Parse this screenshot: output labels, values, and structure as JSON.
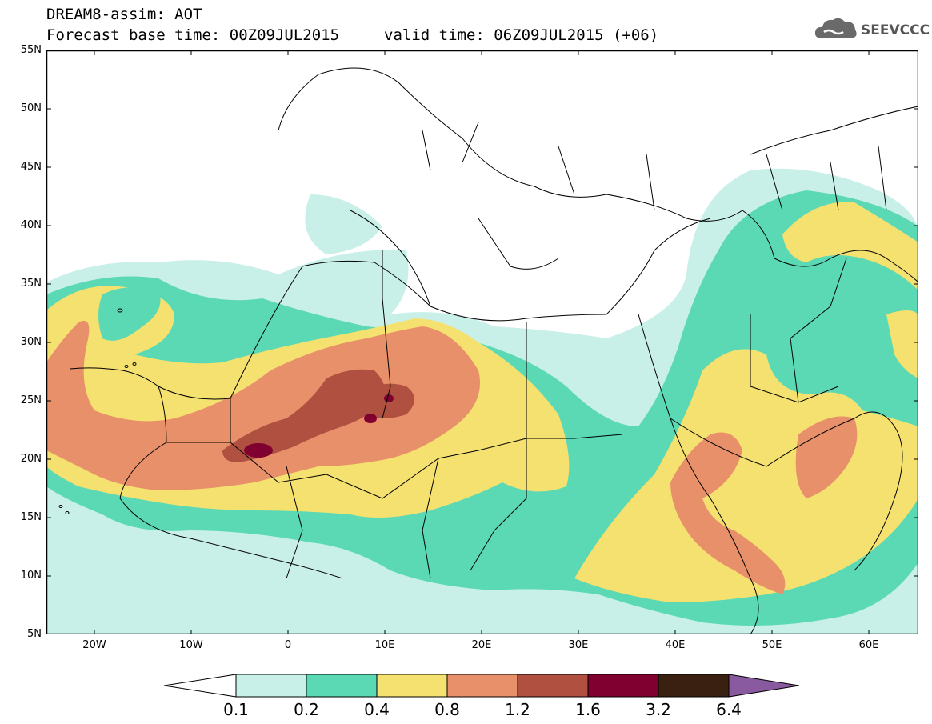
{
  "header": {
    "line1": "DREAM8-assim: AOT",
    "line2": "Forecast base time: 00Z09JUL2015",
    "valid": "valid time: 06Z09JUL2015 (+06)"
  },
  "logo": {
    "text": "SEEVCCC",
    "icon": "cloud-icon"
  },
  "axes": {
    "y_ticks": [
      "55N",
      "50N",
      "45N",
      "40N",
      "35N",
      "30N",
      "25N",
      "20N",
      "15N",
      "10N",
      "5N"
    ],
    "y_values": [
      55,
      50,
      45,
      40,
      35,
      30,
      25,
      20,
      15,
      10,
      5
    ],
    "x_ticks": [
      "20W",
      "10W",
      "0",
      "10E",
      "20E",
      "30E",
      "40E",
      "50E",
      "60E"
    ],
    "x_values": [
      -20,
      -10,
      0,
      10,
      20,
      30,
      40,
      50,
      60
    ],
    "lon_range": [
      -25,
      65
    ],
    "lat_range": [
      5,
      55
    ]
  },
  "colorbar": {
    "labels": [
      "0.1",
      "0.2",
      "0.4",
      "0.8",
      "1.2",
      "1.6",
      "3.2",
      "6.4"
    ],
    "colors": [
      "#ffffff",
      "#c8f0e8",
      "#5ad9b4",
      "#f5e170",
      "#e8906a",
      "#b05040",
      "#800030",
      "#3a2010",
      "#8a5aa0"
    ]
  },
  "colors": {
    "c01": "#c8f0e8",
    "c02": "#5ad9b4",
    "c04": "#f5e170",
    "c08": "#e8906a",
    "c12": "#b05040",
    "c16": "#800030"
  }
}
